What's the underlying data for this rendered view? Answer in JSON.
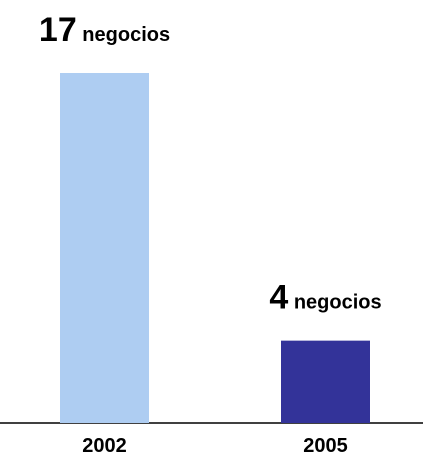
{
  "chart_data": {
    "type": "bar",
    "categories": [
      "2002",
      "2005"
    ],
    "values": [
      17,
      4
    ],
    "value_labels": [
      "17 negocios",
      "4 negocios"
    ],
    "colors": [
      "#aecdf2",
      "#333399"
    ]
  }
}
